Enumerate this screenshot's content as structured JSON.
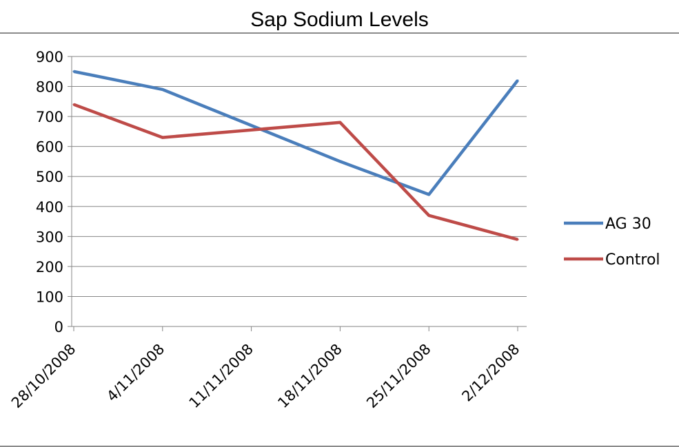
{
  "chart_data": {
    "type": "line",
    "title": "Sap Sodium Levels",
    "xlabel": "",
    "ylabel": "",
    "categories": [
      "28/10/2008",
      "4/11/2008",
      "11/11/2008",
      "18/11/2008",
      "25/11/2008",
      "2/12/2008"
    ],
    "x_days": [
      0,
      7,
      14,
      21,
      28,
      35
    ],
    "ylim": [
      0,
      900
    ],
    "yticks": [
      0,
      100,
      200,
      300,
      400,
      500,
      600,
      700,
      800,
      900
    ],
    "grid": true,
    "legend_position": "right",
    "series": [
      {
        "name": "AG 30",
        "color": "#4a7ebb",
        "points": [
          {
            "x": "28/10/2008",
            "y": 850
          },
          {
            "x": "4/11/2008",
            "y": 790
          },
          {
            "x": "18/11/2008",
            "y": 550
          },
          {
            "x": "25/11/2008",
            "y": 440
          },
          {
            "x": "2/12/2008",
            "y": 820
          }
        ]
      },
      {
        "name": "Control",
        "color": "#be4b48",
        "points": [
          {
            "x": "28/10/2008",
            "y": 740
          },
          {
            "x": "4/11/2008",
            "y": 630
          },
          {
            "x": "18/11/2008",
            "y": 680
          },
          {
            "x": "25/11/2008",
            "y": 370
          },
          {
            "x": "2/12/2008",
            "y": 290
          }
        ]
      }
    ]
  }
}
